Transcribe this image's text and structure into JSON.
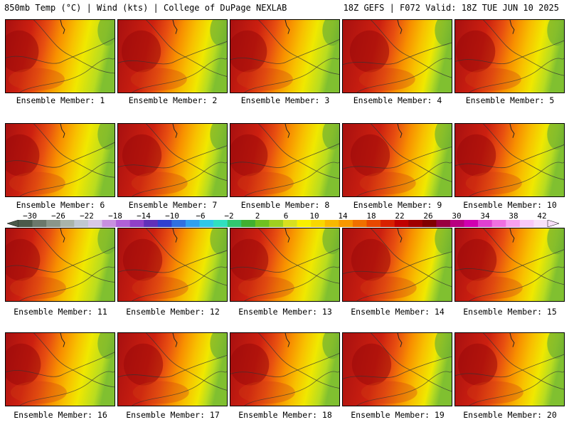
{
  "header": {
    "left": "850mb Temp (°C) | Wind (kts) | College of DuPage NEXLAB",
    "right": "18Z GEFS | F072 Valid: 18Z TUE JUN 10 2025"
  },
  "members": [
    "Ensemble Member: 1",
    "Ensemble Member: 2",
    "Ensemble Member: 3",
    "Ensemble Member: 4",
    "Ensemble Member: 5",
    "Ensemble Member: 6",
    "Ensemble Member: 7",
    "Ensemble Member: 8",
    "Ensemble Member: 9",
    "Ensemble Member: 10",
    "Ensemble Member: 11",
    "Ensemble Member: 12",
    "Ensemble Member: 13",
    "Ensemble Member: 14",
    "Ensemble Member: 15",
    "Ensemble Member: 16",
    "Ensemble Member: 17",
    "Ensemble Member: 18",
    "Ensemble Member: 19",
    "Ensemble Member: 20"
  ],
  "colorbar": {
    "labels": [
      "−30",
      "−26",
      "−22",
      "−18",
      "−14",
      "−10",
      "−6",
      "−2",
      "2",
      "6",
      "10",
      "14",
      "18",
      "22",
      "26",
      "30",
      "34",
      "38",
      "42"
    ],
    "colors": [
      "#4a5a4a",
      "#6b786b",
      "#8a968a",
      "#a9b4a9",
      "#c0c8d0",
      "#d8c8e8",
      "#c890e0",
      "#b060d8",
      "#9040c8",
      "#6030b8",
      "#3040d0",
      "#3070e0",
      "#30a0f0",
      "#30c8e8",
      "#30e0c0",
      "#30c870",
      "#40b030",
      "#70c020",
      "#a0d020",
      "#d8e020",
      "#f8f000",
      "#f8d800",
      "#f8b800",
      "#f89800",
      "#f07000",
      "#e84800",
      "#d82000",
      "#c00000",
      "#a00000",
      "#800000",
      "#980040",
      "#b80080",
      "#d000b0",
      "#e040d0",
      "#f070e0",
      "#f8a0f0",
      "#f8c8f8",
      "#f8e0f8"
    ]
  }
}
